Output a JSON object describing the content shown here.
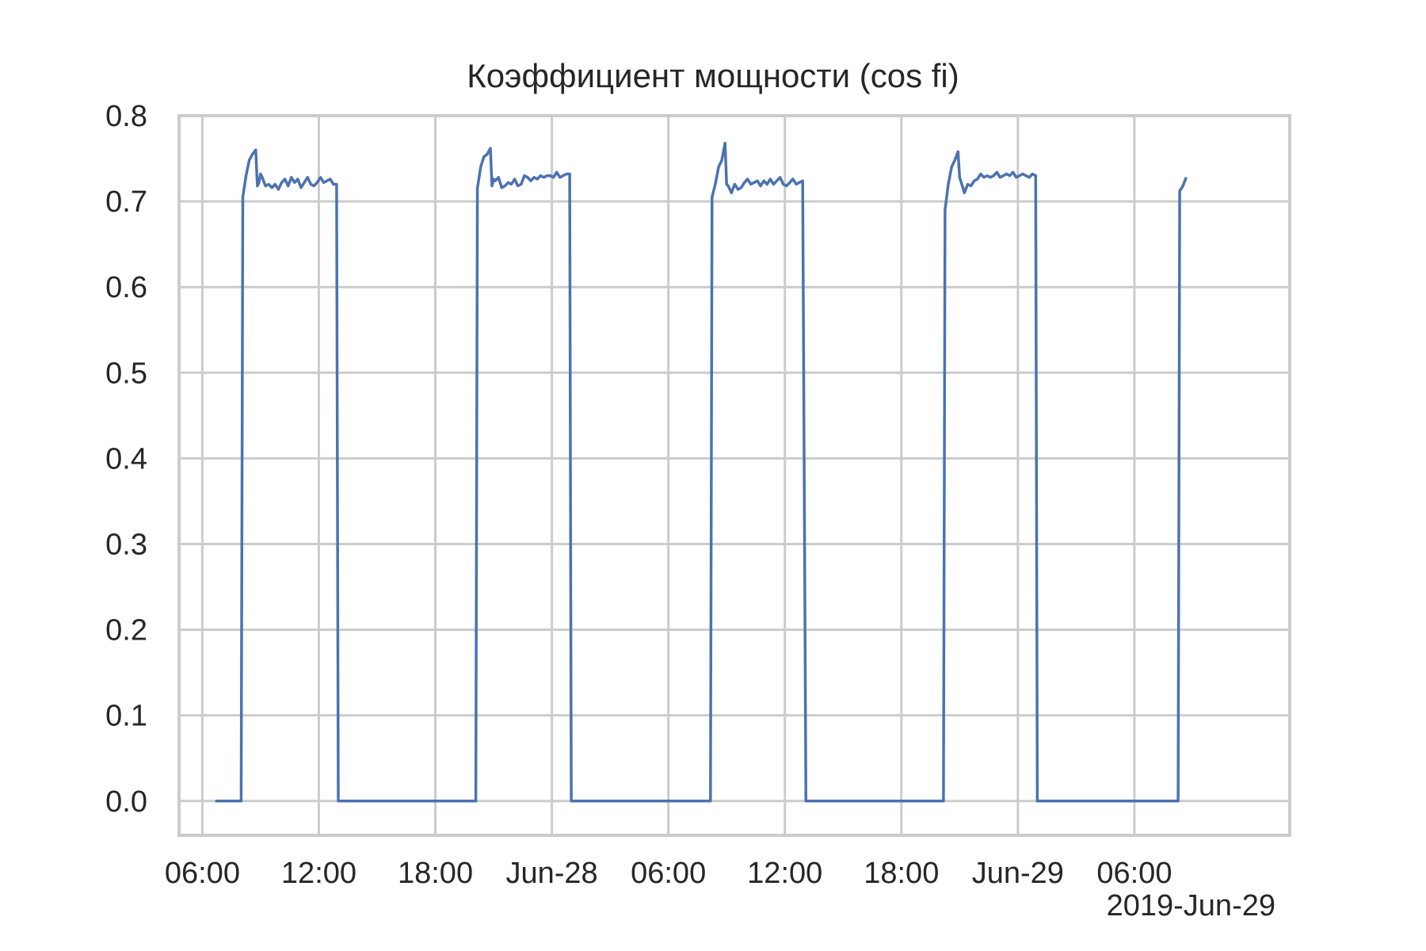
{
  "chart_data": {
    "type": "line",
    "title": "Коэффициент мощности (cos fi)",
    "xlabel": "",
    "ylabel": "",
    "ylim": [
      -0.04,
      0.8
    ],
    "xlim": [
      "2019-06-27T04:48",
      "2019-06-29T14:00"
    ],
    "grid": true,
    "x_ticks": [
      {
        "t": "2019-06-27T06:00",
        "label": "06:00"
      },
      {
        "t": "2019-06-27T12:00",
        "label": "12:00"
      },
      {
        "t": "2019-06-27T18:00",
        "label": "18:00"
      },
      {
        "t": "2019-06-28T00:00",
        "label": "Jun-28"
      },
      {
        "t": "2019-06-28T06:00",
        "label": "06:00"
      },
      {
        "t": "2019-06-28T12:00",
        "label": "12:00"
      },
      {
        "t": "2019-06-28T18:00",
        "label": "18:00"
      },
      {
        "t": "2019-06-29T00:00",
        "label": "Jun-29"
      },
      {
        "t": "2019-06-29T06:00",
        "label": "06:00"
      }
    ],
    "x_offset_label": "2019-Jun-29",
    "y_ticks": [
      {
        "v": 0.0,
        "label": "0.0"
      },
      {
        "v": 0.1,
        "label": "0.1"
      },
      {
        "v": 0.2,
        "label": "0.2"
      },
      {
        "v": 0.3,
        "label": "0.3"
      },
      {
        "v": 0.4,
        "label": "0.4"
      },
      {
        "v": 0.5,
        "label": "0.5"
      },
      {
        "v": 0.6,
        "label": "0.6"
      },
      {
        "v": 0.7,
        "label": "0.7"
      },
      {
        "v": 0.8,
        "label": "0.8"
      }
    ],
    "line_color": "#4c72b0",
    "series": [
      {
        "x": [
          "2019-06-27T06:40",
          "2019-06-27T08:00",
          "2019-06-27T08:05",
          "2019-06-27T08:15",
          "2019-06-27T08:25",
          "2019-06-27T08:35",
          "2019-06-27T08:45",
          "2019-06-27T08:50",
          "2019-06-27T08:55",
          "2019-06-27T09:00",
          "2019-06-27T09:05",
          "2019-06-27T09:15",
          "2019-06-27T09:25",
          "2019-06-27T09:35",
          "2019-06-27T09:45",
          "2019-06-27T09:55",
          "2019-06-27T10:05",
          "2019-06-27T10:15",
          "2019-06-27T10:25",
          "2019-06-27T10:35",
          "2019-06-27T10:45",
          "2019-06-27T10:55",
          "2019-06-27T11:05",
          "2019-06-27T11:15",
          "2019-06-27T11:25",
          "2019-06-27T11:35",
          "2019-06-27T11:45",
          "2019-06-27T11:55",
          "2019-06-27T12:05",
          "2019-06-27T12:15",
          "2019-06-27T12:25",
          "2019-06-27T12:35",
          "2019-06-27T12:45",
          "2019-06-27T12:55",
          "2019-06-27T13:00",
          "2019-06-27T20:05",
          "2019-06-27T20:10",
          "2019-06-27T20:20",
          "2019-06-27T20:30",
          "2019-06-27T20:40",
          "2019-06-27T20:50",
          "2019-06-27T20:55",
          "2019-06-27T21:00",
          "2019-06-27T21:05",
          "2019-06-27T21:15",
          "2019-06-27T21:25",
          "2019-06-27T21:35",
          "2019-06-27T21:45",
          "2019-06-27T21:55",
          "2019-06-27T22:05",
          "2019-06-27T22:15",
          "2019-06-27T22:25",
          "2019-06-27T22:35",
          "2019-06-27T22:45",
          "2019-06-27T22:55",
          "2019-06-27T23:05",
          "2019-06-27T23:15",
          "2019-06-27T23:25",
          "2019-06-27T23:35",
          "2019-06-27T23:45",
          "2019-06-27T23:55",
          "2019-06-28T00:05",
          "2019-06-28T00:15",
          "2019-06-28T00:25",
          "2019-06-28T00:35",
          "2019-06-28T00:45",
          "2019-06-28T00:55",
          "2019-06-28T01:00",
          "2019-06-28T08:10",
          "2019-06-28T08:15",
          "2019-06-28T08:25",
          "2019-06-28T08:35",
          "2019-06-28T08:45",
          "2019-06-28T08:55",
          "2019-06-28T09:00",
          "2019-06-28T09:05",
          "2019-06-28T09:15",
          "2019-06-28T09:25",
          "2019-06-28T09:35",
          "2019-06-28T09:45",
          "2019-06-28T09:55",
          "2019-06-28T10:05",
          "2019-06-28T10:15",
          "2019-06-28T10:25",
          "2019-06-28T10:35",
          "2019-06-28T10:45",
          "2019-06-28T10:55",
          "2019-06-28T11:05",
          "2019-06-28T11:15",
          "2019-06-28T11:25",
          "2019-06-28T11:35",
          "2019-06-28T11:45",
          "2019-06-28T11:55",
          "2019-06-28T12:05",
          "2019-06-28T12:15",
          "2019-06-28T12:25",
          "2019-06-28T12:35",
          "2019-06-28T12:45",
          "2019-06-28T12:55",
          "2019-06-28T13:05",
          "2019-06-28T20:10",
          "2019-06-28T20:15",
          "2019-06-28T20:25",
          "2019-06-28T20:35",
          "2019-06-28T20:45",
          "2019-06-28T20:55",
          "2019-06-28T21:00",
          "2019-06-28T21:05",
          "2019-06-28T21:15",
          "2019-06-28T21:25",
          "2019-06-28T21:35",
          "2019-06-28T21:45",
          "2019-06-28T21:55",
          "2019-06-28T22:05",
          "2019-06-28T22:15",
          "2019-06-28T22:25",
          "2019-06-28T22:35",
          "2019-06-28T22:45",
          "2019-06-28T22:55",
          "2019-06-28T23:05",
          "2019-06-28T23:15",
          "2019-06-28T23:25",
          "2019-06-28T23:35",
          "2019-06-28T23:45",
          "2019-06-28T23:55",
          "2019-06-29T00:05",
          "2019-06-29T00:15",
          "2019-06-29T00:25",
          "2019-06-29T00:35",
          "2019-06-29T00:45",
          "2019-06-29T00:55",
          "2019-06-29T01:00",
          "2019-06-29T08:15",
          "2019-06-29T08:20",
          "2019-06-29T08:30",
          "2019-06-29T08:40"
        ],
        "y": [
          0.0,
          0.0,
          0.705,
          0.73,
          0.748,
          0.755,
          0.76,
          0.718,
          0.722,
          0.732,
          0.728,
          0.718,
          0.72,
          0.716,
          0.72,
          0.714,
          0.722,
          0.726,
          0.718,
          0.728,
          0.722,
          0.726,
          0.716,
          0.722,
          0.728,
          0.72,
          0.718,
          0.722,
          0.728,
          0.722,
          0.724,
          0.726,
          0.72,
          0.72,
          0.0,
          0.0,
          0.715,
          0.74,
          0.752,
          0.755,
          0.762,
          0.718,
          0.726,
          0.724,
          0.728,
          0.716,
          0.718,
          0.722,
          0.72,
          0.726,
          0.718,
          0.72,
          0.73,
          0.728,
          0.724,
          0.728,
          0.726,
          0.73,
          0.728,
          0.73,
          0.73,
          0.728,
          0.734,
          0.728,
          0.73,
          0.732,
          0.732,
          0.0,
          0.0,
          0.705,
          0.72,
          0.74,
          0.748,
          0.768,
          0.72,
          0.718,
          0.71,
          0.72,
          0.714,
          0.716,
          0.722,
          0.726,
          0.72,
          0.722,
          0.724,
          0.718,
          0.724,
          0.72,
          0.726,
          0.72,
          0.724,
          0.728,
          0.72,
          0.718,
          0.722,
          0.726,
          0.72,
          0.722,
          0.724,
          0.0,
          0.0,
          0.69,
          0.72,
          0.74,
          0.748,
          0.758,
          0.728,
          0.722,
          0.71,
          0.72,
          0.718,
          0.724,
          0.726,
          0.732,
          0.728,
          0.73,
          0.728,
          0.73,
          0.734,
          0.728,
          0.73,
          0.732,
          0.73,
          0.734,
          0.728,
          0.73,
          0.732,
          0.73,
          0.728,
          0.732,
          0.73,
          0.0,
          0.0,
          0.712,
          0.718,
          0.728
        ]
      }
    ]
  }
}
